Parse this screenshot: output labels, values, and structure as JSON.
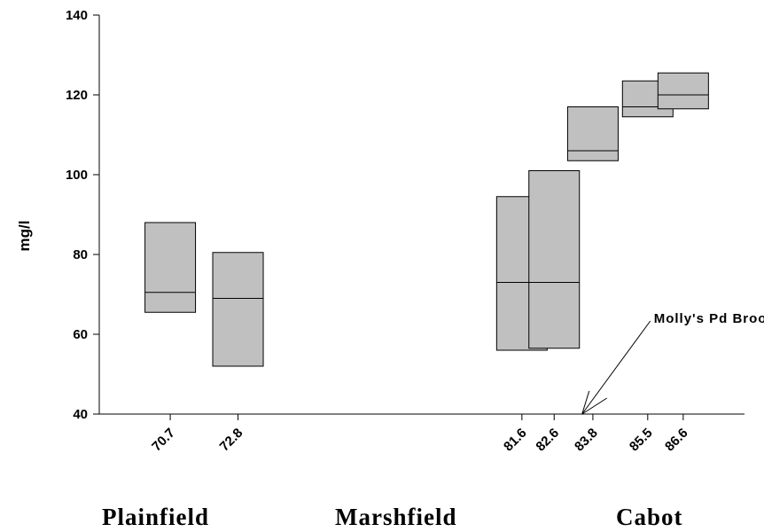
{
  "chart_data": {
    "type": "box",
    "ylabel": "mg/l",
    "ylim": [
      40,
      140
    ],
    "yticks": [
      40,
      60,
      80,
      100,
      120,
      140
    ],
    "xlim": [
      68.5,
      88.5
    ],
    "categories": [
      "70.7",
      "72.8",
      "81.6",
      "82.6",
      "83.8",
      "85.5",
      "86.6"
    ],
    "boxes": [
      {
        "label": "70.7",
        "low": 65.5,
        "median": 70.5,
        "high": 88
      },
      {
        "label": "72.8",
        "low": 52,
        "median": 69,
        "high": 80.5
      },
      {
        "label": "81.6",
        "low": 56,
        "median": 73,
        "high": 94.5
      },
      {
        "label": "82.6",
        "low": 56.5,
        "median": 73,
        "high": 101
      },
      {
        "label": "83.8",
        "low": 103.5,
        "median": 106,
        "high": 117
      },
      {
        "label": "85.5",
        "low": 114.5,
        "median": 117,
        "high": 123.5
      },
      {
        "label": "86.6",
        "low": 116.5,
        "median": 120,
        "high": 125.5
      }
    ],
    "annotations": [
      {
        "text": "Molly's Pd Brook",
        "x": 83.3,
        "y": 40
      }
    ],
    "grid": false
  },
  "towns": {
    "plainfield": "Plainfield",
    "marshfield": "Marshfield",
    "cabot": "Cabot"
  }
}
